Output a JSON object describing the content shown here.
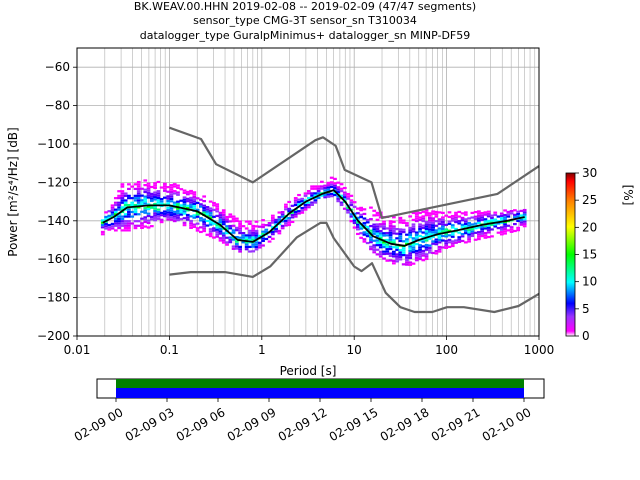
{
  "title": {
    "line1": "BK.WEAV.00.HHN   2019-02-08 -- 2019-02-09  (47/47 segments)",
    "line2": "sensor_type CMG-3T sensor_sn T310034",
    "line3": "datalogger_type GuralpMinimus+ datalogger_sn MINP-DF59"
  },
  "chart_data": {
    "type": "heatmap",
    "xlabel": "Period [s]",
    "ylabel_html": "Power [m²/s⁴/Hz] [dB]",
    "x_scale": "log",
    "xlim": [
      0.01,
      1000
    ],
    "ylim": [
      -200,
      -50
    ],
    "x_ticks": [
      {
        "v": 0.01,
        "label": "0.01"
      },
      {
        "v": 0.1,
        "label": "0.1"
      },
      {
        "v": 1,
        "label": "1"
      },
      {
        "v": 10,
        "label": "10"
      },
      {
        "v": 100,
        "label": "100"
      },
      {
        "v": 1000,
        "label": "1000"
      }
    ],
    "y_ticks": [
      {
        "v": -60,
        "label": "−60"
      },
      {
        "v": -80,
        "label": "−80"
      },
      {
        "v": -100,
        "label": "−100"
      },
      {
        "v": -120,
        "label": "−120"
      },
      {
        "v": -140,
        "label": "−140"
      },
      {
        "v": -160,
        "label": "−160"
      },
      {
        "v": -180,
        "label": "−180"
      },
      {
        "v": -200,
        "label": "−200"
      }
    ],
    "grid": true,
    "colorbar": {
      "label": "[%]",
      "range": [
        0,
        30
      ],
      "ticks": [
        {
          "v": 0,
          "label": "0"
        },
        {
          "v": 5,
          "label": "5"
        },
        {
          "v": 10,
          "label": "10"
        },
        {
          "v": 15,
          "label": "15"
        },
        {
          "v": 20,
          "label": "20"
        },
        {
          "v": 25,
          "label": "25"
        },
        {
          "v": 30,
          "label": "30"
        }
      ]
    },
    "nhnm": [
      [
        0.1,
        -91.5
      ],
      [
        0.22,
        -97.4
      ],
      [
        0.32,
        -110.5
      ],
      [
        0.8,
        -120
      ],
      [
        3.8,
        -98
      ],
      [
        4.6,
        -96.5
      ],
      [
        6.3,
        -101
      ],
      [
        7.9,
        -113.5
      ],
      [
        15.4,
        -120
      ],
      [
        20,
        -138.5
      ],
      [
        354.8,
        -126
      ],
      [
        1000,
        -111.5
      ]
    ],
    "nlnm": [
      [
        0.1,
        -168
      ],
      [
        0.17,
        -166.7
      ],
      [
        0.4,
        -166.7
      ],
      [
        0.8,
        -169.2
      ],
      [
        1.24,
        -163.7
      ],
      [
        2.4,
        -148.6
      ],
      [
        4.3,
        -141.1
      ],
      [
        5,
        -141.1
      ],
      [
        6,
        -149
      ],
      [
        10,
        -163.8
      ],
      [
        12,
        -166.2
      ],
      [
        15.6,
        -162.1
      ],
      [
        21.9,
        -177.5
      ],
      [
        31.6,
        -185
      ],
      [
        45,
        -187.5
      ],
      [
        70,
        -187.5
      ],
      [
        101,
        -185
      ],
      [
        154,
        -185
      ],
      [
        328,
        -187.5
      ],
      [
        600,
        -184.4
      ],
      [
        1000,
        -178
      ]
    ],
    "median": [
      [
        0.019,
        -141
      ],
      [
        0.025,
        -138
      ],
      [
        0.035,
        -133
      ],
      [
        0.06,
        -132
      ],
      [
        0.1,
        -132
      ],
      [
        0.2,
        -135
      ],
      [
        0.35,
        -142
      ],
      [
        0.55,
        -150
      ],
      [
        0.8,
        -151
      ],
      [
        1.2,
        -146
      ],
      [
        2,
        -136
      ],
      [
        3,
        -130
      ],
      [
        4.5,
        -126
      ],
      [
        6,
        -124
      ],
      [
        8,
        -130
      ],
      [
        11,
        -140
      ],
      [
        16,
        -148
      ],
      [
        25,
        -152
      ],
      [
        35,
        -153
      ],
      [
        50,
        -150
      ],
      [
        80,
        -147
      ],
      [
        130,
        -145
      ],
      [
        250,
        -142
      ],
      [
        450,
        -140
      ],
      [
        700,
        -138
      ]
    ],
    "cloud_upper": [
      [
        0.019,
        -137
      ],
      [
        0.025,
        -130
      ],
      [
        0.03,
        -121
      ],
      [
        0.05,
        -119
      ],
      [
        0.1,
        -119
      ],
      [
        0.2,
        -125
      ],
      [
        0.35,
        -132
      ],
      [
        0.6,
        -140
      ],
      [
        1.2,
        -139
      ],
      [
        2,
        -130
      ],
      [
        3,
        -124
      ],
      [
        4.5,
        -118
      ],
      [
        6,
        -117
      ],
      [
        8,
        -122
      ],
      [
        11,
        -132
      ],
      [
        15,
        -133
      ],
      [
        25,
        -138
      ],
      [
        40,
        -136
      ],
      [
        60,
        -134
      ],
      [
        100,
        -135
      ],
      [
        300,
        -135
      ],
      [
        700,
        -134
      ]
    ],
    "cloud_lower": [
      [
        0.019,
        -147
      ],
      [
        0.025,
        -145
      ],
      [
        0.05,
        -145
      ],
      [
        0.1,
        -139
      ],
      [
        0.2,
        -145
      ],
      [
        0.35,
        -150
      ],
      [
        0.55,
        -156
      ],
      [
        0.8,
        -156
      ],
      [
        1.2,
        -151
      ],
      [
        2,
        -142
      ],
      [
        3,
        -134
      ],
      [
        4.5,
        -128
      ],
      [
        6,
        -127
      ],
      [
        8,
        -134
      ],
      [
        11,
        -147
      ],
      [
        16,
        -156
      ],
      [
        25,
        -162
      ],
      [
        40,
        -163
      ],
      [
        60,
        -160
      ],
      [
        100,
        -154
      ],
      [
        200,
        -150
      ],
      [
        400,
        -147
      ],
      [
        700,
        -144
      ]
    ],
    "timeline": {
      "ticks": [
        "02-09 00",
        "02-09 03",
        "02-09 06",
        "02-09 09",
        "02-09 12",
        "02-09 15",
        "02-09 18",
        "02-09 21",
        "02-10 00"
      ],
      "colors": {
        "top": "#008000",
        "bottom": "#0000ff"
      }
    }
  }
}
